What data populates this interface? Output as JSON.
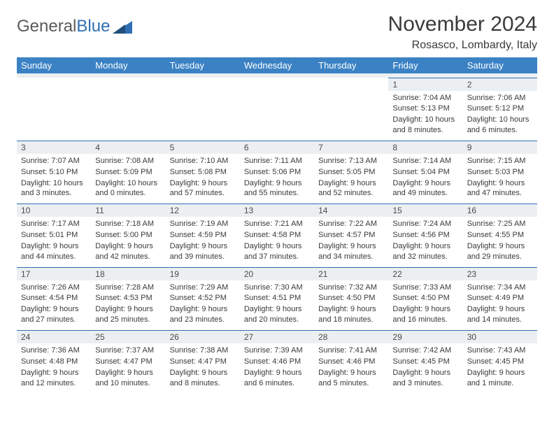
{
  "logo": {
    "word1": "General",
    "word2": "Blue"
  },
  "title": "November 2024",
  "location": "Rosasco, Lombardy, Italy",
  "colors": {
    "header_bg": "#3b82c4",
    "header_text": "#ffffff",
    "daynum_bg": "#eceff2",
    "border": "#2f6fb3",
    "text": "#3a3a3a",
    "title_text": "#3b3b3b",
    "logo_gray": "#5a5a5a",
    "logo_blue": "#2f6fb3"
  },
  "weekdays": [
    "Sunday",
    "Monday",
    "Tuesday",
    "Wednesday",
    "Thursday",
    "Friday",
    "Saturday"
  ],
  "weeks": [
    [
      null,
      null,
      null,
      null,
      null,
      {
        "n": "1",
        "sunrise": "Sunrise: 7:04 AM",
        "sunset": "Sunset: 5:13 PM",
        "daylight": "Daylight: 10 hours and 8 minutes."
      },
      {
        "n": "2",
        "sunrise": "Sunrise: 7:06 AM",
        "sunset": "Sunset: 5:12 PM",
        "daylight": "Daylight: 10 hours and 6 minutes."
      }
    ],
    [
      {
        "n": "3",
        "sunrise": "Sunrise: 7:07 AM",
        "sunset": "Sunset: 5:10 PM",
        "daylight": "Daylight: 10 hours and 3 minutes."
      },
      {
        "n": "4",
        "sunrise": "Sunrise: 7:08 AM",
        "sunset": "Sunset: 5:09 PM",
        "daylight": "Daylight: 10 hours and 0 minutes."
      },
      {
        "n": "5",
        "sunrise": "Sunrise: 7:10 AM",
        "sunset": "Sunset: 5:08 PM",
        "daylight": "Daylight: 9 hours and 57 minutes."
      },
      {
        "n": "6",
        "sunrise": "Sunrise: 7:11 AM",
        "sunset": "Sunset: 5:06 PM",
        "daylight": "Daylight: 9 hours and 55 minutes."
      },
      {
        "n": "7",
        "sunrise": "Sunrise: 7:13 AM",
        "sunset": "Sunset: 5:05 PM",
        "daylight": "Daylight: 9 hours and 52 minutes."
      },
      {
        "n": "8",
        "sunrise": "Sunrise: 7:14 AM",
        "sunset": "Sunset: 5:04 PM",
        "daylight": "Daylight: 9 hours and 49 minutes."
      },
      {
        "n": "9",
        "sunrise": "Sunrise: 7:15 AM",
        "sunset": "Sunset: 5:03 PM",
        "daylight": "Daylight: 9 hours and 47 minutes."
      }
    ],
    [
      {
        "n": "10",
        "sunrise": "Sunrise: 7:17 AM",
        "sunset": "Sunset: 5:01 PM",
        "daylight": "Daylight: 9 hours and 44 minutes."
      },
      {
        "n": "11",
        "sunrise": "Sunrise: 7:18 AM",
        "sunset": "Sunset: 5:00 PM",
        "daylight": "Daylight: 9 hours and 42 minutes."
      },
      {
        "n": "12",
        "sunrise": "Sunrise: 7:19 AM",
        "sunset": "Sunset: 4:59 PM",
        "daylight": "Daylight: 9 hours and 39 minutes."
      },
      {
        "n": "13",
        "sunrise": "Sunrise: 7:21 AM",
        "sunset": "Sunset: 4:58 PM",
        "daylight": "Daylight: 9 hours and 37 minutes."
      },
      {
        "n": "14",
        "sunrise": "Sunrise: 7:22 AM",
        "sunset": "Sunset: 4:57 PM",
        "daylight": "Daylight: 9 hours and 34 minutes."
      },
      {
        "n": "15",
        "sunrise": "Sunrise: 7:24 AM",
        "sunset": "Sunset: 4:56 PM",
        "daylight": "Daylight: 9 hours and 32 minutes."
      },
      {
        "n": "16",
        "sunrise": "Sunrise: 7:25 AM",
        "sunset": "Sunset: 4:55 PM",
        "daylight": "Daylight: 9 hours and 29 minutes."
      }
    ],
    [
      {
        "n": "17",
        "sunrise": "Sunrise: 7:26 AM",
        "sunset": "Sunset: 4:54 PM",
        "daylight": "Daylight: 9 hours and 27 minutes."
      },
      {
        "n": "18",
        "sunrise": "Sunrise: 7:28 AM",
        "sunset": "Sunset: 4:53 PM",
        "daylight": "Daylight: 9 hours and 25 minutes."
      },
      {
        "n": "19",
        "sunrise": "Sunrise: 7:29 AM",
        "sunset": "Sunset: 4:52 PM",
        "daylight": "Daylight: 9 hours and 23 minutes."
      },
      {
        "n": "20",
        "sunrise": "Sunrise: 7:30 AM",
        "sunset": "Sunset: 4:51 PM",
        "daylight": "Daylight: 9 hours and 20 minutes."
      },
      {
        "n": "21",
        "sunrise": "Sunrise: 7:32 AM",
        "sunset": "Sunset: 4:50 PM",
        "daylight": "Daylight: 9 hours and 18 minutes."
      },
      {
        "n": "22",
        "sunrise": "Sunrise: 7:33 AM",
        "sunset": "Sunset: 4:50 PM",
        "daylight": "Daylight: 9 hours and 16 minutes."
      },
      {
        "n": "23",
        "sunrise": "Sunrise: 7:34 AM",
        "sunset": "Sunset: 4:49 PM",
        "daylight": "Daylight: 9 hours and 14 minutes."
      }
    ],
    [
      {
        "n": "24",
        "sunrise": "Sunrise: 7:36 AM",
        "sunset": "Sunset: 4:48 PM",
        "daylight": "Daylight: 9 hours and 12 minutes."
      },
      {
        "n": "25",
        "sunrise": "Sunrise: 7:37 AM",
        "sunset": "Sunset: 4:47 PM",
        "daylight": "Daylight: 9 hours and 10 minutes."
      },
      {
        "n": "26",
        "sunrise": "Sunrise: 7:38 AM",
        "sunset": "Sunset: 4:47 PM",
        "daylight": "Daylight: 9 hours and 8 minutes."
      },
      {
        "n": "27",
        "sunrise": "Sunrise: 7:39 AM",
        "sunset": "Sunset: 4:46 PM",
        "daylight": "Daylight: 9 hours and 6 minutes."
      },
      {
        "n": "28",
        "sunrise": "Sunrise: 7:41 AM",
        "sunset": "Sunset: 4:46 PM",
        "daylight": "Daylight: 9 hours and 5 minutes."
      },
      {
        "n": "29",
        "sunrise": "Sunrise: 7:42 AM",
        "sunset": "Sunset: 4:45 PM",
        "daylight": "Daylight: 9 hours and 3 minutes."
      },
      {
        "n": "30",
        "sunrise": "Sunrise: 7:43 AM",
        "sunset": "Sunset: 4:45 PM",
        "daylight": "Daylight: 9 hours and 1 minute."
      }
    ]
  ]
}
